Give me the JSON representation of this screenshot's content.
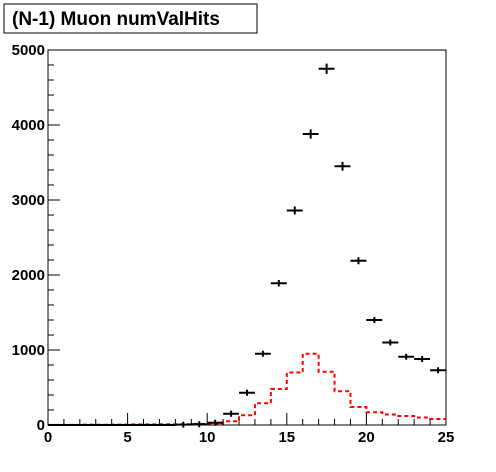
{
  "chart_data": {
    "type": "line",
    "title": "(N-1) Muon numValHits",
    "xlabel": "",
    "ylabel": "",
    "xlim": [
      0,
      25
    ],
    "ylim": [
      0,
      5000
    ],
    "x_tick_labels": [
      "0",
      "5",
      "10",
      "15",
      "20",
      "25"
    ],
    "y_tick_labels": [
      "0",
      "1000",
      "2000",
      "3000",
      "4000",
      "5000"
    ],
    "grid": false,
    "legend": "none",
    "bin_edges": [
      0,
      1,
      2,
      3,
      4,
      5,
      6,
      7,
      8,
      9,
      10,
      11,
      12,
      13,
      14,
      15,
      16,
      17,
      18,
      19,
      20,
      21,
      22,
      23,
      24,
      25
    ],
    "series": [
      {
        "style": "points-with-x-errors",
        "color": "#000000",
        "x": [
          0.5,
          1.5,
          2.5,
          3.5,
          4.5,
          5.5,
          6.5,
          7.5,
          8.5,
          9.5,
          10.5,
          11.5,
          12.5,
          13.5,
          14.5,
          15.5,
          16.5,
          17.5,
          18.5,
          19.5,
          20.5,
          21.5,
          22.5,
          23.5,
          24.5
        ],
        "values": [
          0,
          0,
          0,
          0,
          0,
          0,
          0,
          0,
          5,
          10,
          30,
          150,
          430,
          950,
          1890,
          2860,
          3880,
          4750,
          3450,
          2190,
          1400,
          1100,
          910,
          880,
          730
        ]
      },
      {
        "style": "dashed-step",
        "color": "#ff0000",
        "x": [
          0.5,
          1.5,
          2.5,
          3.5,
          4.5,
          5.5,
          6.5,
          7.5,
          8.5,
          9.5,
          10.5,
          11.5,
          12.5,
          13.5,
          14.5,
          15.5,
          16.5,
          17.5,
          18.5,
          19.5,
          20.5,
          21.5,
          22.5,
          23.5,
          24.5
        ],
        "values": [
          2,
          2,
          5,
          3,
          5,
          8,
          8,
          10,
          10,
          15,
          20,
          50,
          130,
          290,
          480,
          700,
          950,
          710,
          450,
          240,
          170,
          140,
          120,
          100,
          80
        ]
      }
    ]
  }
}
